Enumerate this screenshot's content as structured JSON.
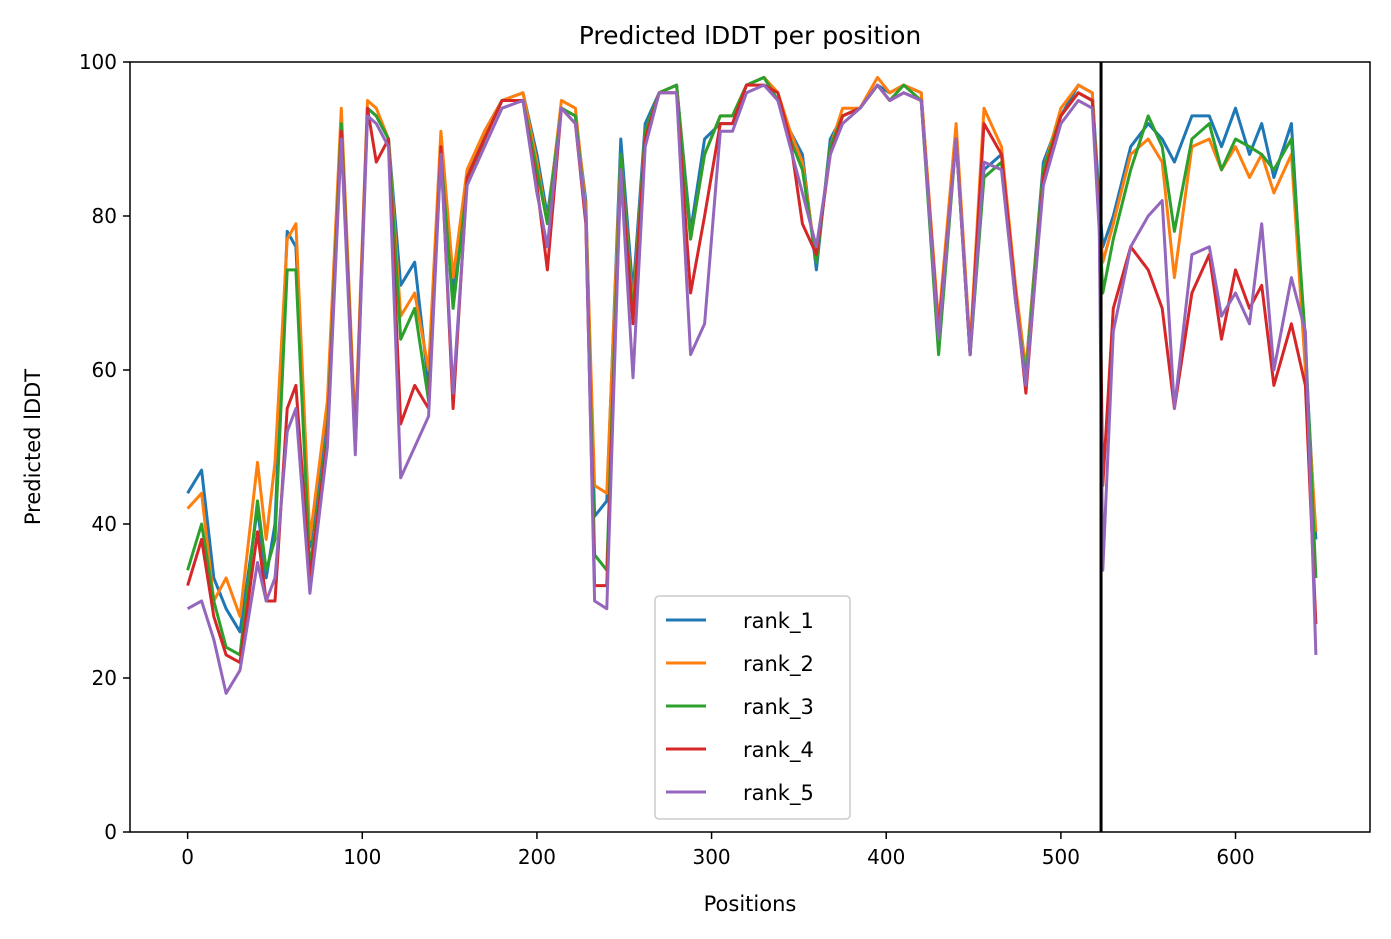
{
  "chart_data": {
    "type": "line",
    "title": "Predicted lDDT per position",
    "xlabel": "Positions",
    "ylabel": "Predicted lDDT",
    "xlim": [
      -33,
      677
    ],
    "ylim": [
      0,
      100
    ],
    "xticks": [
      0,
      100,
      200,
      300,
      400,
      500,
      600
    ],
    "yticks": [
      0,
      20,
      40,
      60,
      80,
      100
    ],
    "grid": false,
    "legend_position": "bottom-center",
    "vertical_lines": [
      523
    ],
    "vertical_line_color": "#000000",
    "x": [
      0,
      8,
      15,
      22,
      30,
      40,
      45,
      50,
      57,
      62,
      70,
      80,
      88,
      96,
      103,
      108,
      115,
      122,
      130,
      138,
      145,
      152,
      160,
      170,
      180,
      192,
      200,
      206,
      214,
      222,
      228,
      233,
      240,
      248,
      255,
      262,
      270,
      280,
      288,
      296,
      305,
      312,
      320,
      330,
      338,
      345,
      352,
      360,
      368,
      375,
      385,
      395,
      402,
      410,
      420,
      430,
      440,
      448,
      456,
      466,
      474,
      480,
      490,
      500,
      510,
      518,
      522,
      524,
      530,
      540,
      550,
      558,
      565,
      575,
      585,
      592,
      600,
      608,
      615,
      622,
      632,
      640,
      646
    ],
    "series": [
      {
        "name": "rank_1",
        "color": "#1f77b4",
        "values": [
          44,
          47,
          33,
          29,
          26,
          42,
          33,
          40,
          78,
          76,
          37,
          55,
          92,
          50,
          94,
          93,
          90,
          71,
          74,
          58,
          90,
          70,
          85,
          91,
          95,
          96,
          88,
          80,
          94,
          93,
          82,
          41,
          43,
          90,
          70,
          92,
          96,
          97,
          78,
          90,
          92,
          92,
          97,
          98,
          95,
          91,
          88,
          73,
          90,
          93,
          94,
          97,
          96,
          97,
          96,
          65,
          91,
          62,
          86,
          88,
          70,
          60,
          87,
          93,
          97,
          96,
          82,
          76,
          80,
          89,
          92,
          90,
          87,
          93,
          93,
          89,
          94,
          88,
          92,
          85,
          92,
          62,
          38
        ]
      },
      {
        "name": "rank_2",
        "color": "#ff7f0e",
        "values": [
          42,
          44,
          30,
          33,
          28,
          48,
          38,
          48,
          77,
          79,
          38,
          56,
          94,
          52,
          95,
          94,
          90,
          67,
          70,
          60,
          91,
          72,
          86,
          91,
          95,
          96,
          87,
          79,
          95,
          94,
          81,
          45,
          44,
          88,
          68,
          91,
          96,
          97,
          77,
          88,
          93,
          93,
          97,
          98,
          96,
          91,
          87,
          74,
          89,
          94,
          94,
          98,
          96,
          97,
          96,
          66,
          92,
          63,
          94,
          89,
          71,
          60,
          86,
          94,
          97,
          96,
          80,
          74,
          79,
          88,
          90,
          87,
          72,
          89,
          90,
          86,
          89,
          85,
          88,
          83,
          88,
          60,
          39
        ]
      },
      {
        "name": "rank_3",
        "color": "#2ca02c",
        "values": [
          34,
          40,
          30,
          24,
          23,
          43,
          34,
          38,
          73,
          73,
          34,
          52,
          92,
          50,
          94,
          93,
          90,
          64,
          68,
          56,
          88,
          68,
          84,
          90,
          95,
          95,
          86,
          79,
          94,
          93,
          80,
          36,
          34,
          88,
          67,
          91,
          96,
          97,
          77,
          88,
          93,
          93,
          97,
          98,
          95,
          90,
          86,
          74,
          89,
          93,
          94,
          97,
          95,
          97,
          95,
          62,
          90,
          62,
          85,
          87,
          69,
          59,
          86,
          93,
          96,
          95,
          80,
          70,
          77,
          86,
          93,
          89,
          78,
          90,
          92,
          86,
          90,
          89,
          88,
          86,
          90,
          64,
          33
        ]
      },
      {
        "name": "rank_4",
        "color": "#d62728",
        "values": [
          32,
          38,
          28,
          23,
          22,
          39,
          30,
          30,
          55,
          58,
          33,
          51,
          91,
          50,
          94,
          87,
          90,
          53,
          58,
          55,
          89,
          55,
          85,
          90,
          95,
          95,
          84,
          73,
          94,
          92,
          79,
          32,
          32,
          86,
          66,
          90,
          96,
          96,
          70,
          80,
          92,
          92,
          97,
          97,
          96,
          90,
          79,
          75,
          88,
          93,
          94,
          97,
          95,
          96,
          95,
          65,
          90,
          62,
          92,
          88,
          70,
          57,
          85,
          93,
          96,
          95,
          79,
          45,
          68,
          76,
          73,
          68,
          55,
          70,
          75,
          64,
          73,
          68,
          71,
          58,
          66,
          58,
          27
        ]
      },
      {
        "name": "rank_5",
        "color": "#9467bd",
        "values": [
          29,
          30,
          25,
          18,
          21,
          35,
          30,
          33,
          52,
          55,
          31,
          50,
          90,
          49,
          93,
          92,
          89,
          46,
          50,
          54,
          88,
          57,
          84,
          89,
          94,
          95,
          83,
          76,
          94,
          92,
          80,
          30,
          29,
          86,
          59,
          89,
          96,
          96,
          62,
          66,
          91,
          91,
          96,
          97,
          95,
          89,
          83,
          76,
          88,
          92,
          94,
          97,
          95,
          96,
          95,
          64,
          90,
          62,
          87,
          86,
          69,
          58,
          84,
          92,
          95,
          94,
          78,
          34,
          65,
          76,
          80,
          82,
          55,
          75,
          76,
          67,
          70,
          66,
          79,
          60,
          72,
          65,
          23
        ]
      }
    ]
  }
}
